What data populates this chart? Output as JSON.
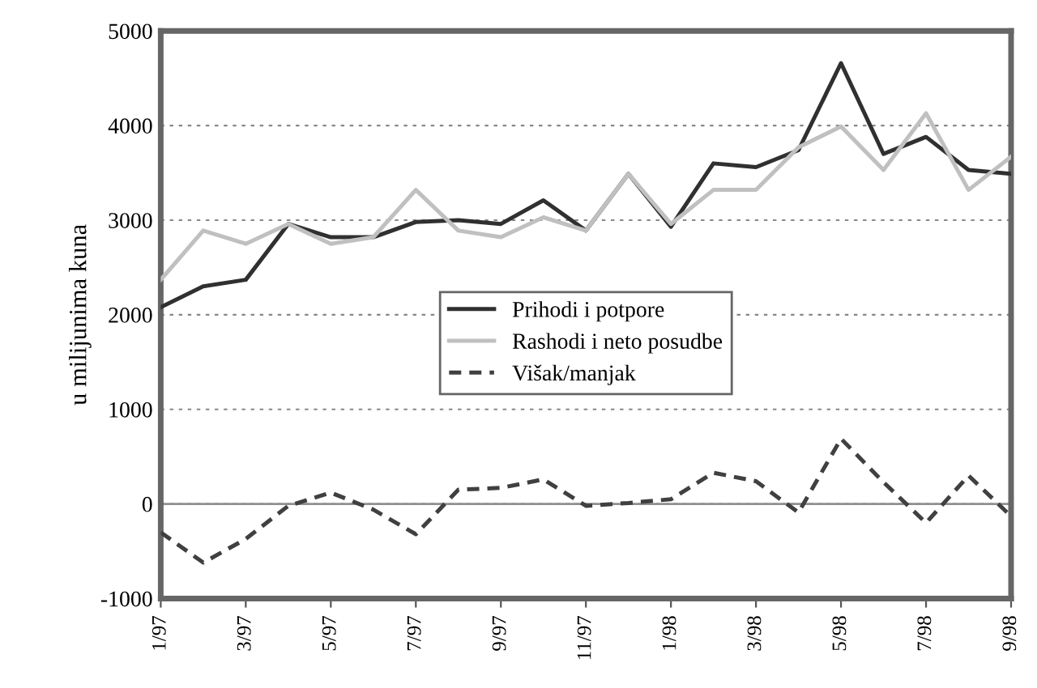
{
  "chart_data": {
    "type": "line",
    "ylabel": "u milijunima kuna",
    "categories": [
      "1/97",
      null,
      "3/97",
      null,
      "5/97",
      null,
      "7/97",
      null,
      "9/97",
      null,
      "11/97",
      null,
      "1/98",
      null,
      "3/98",
      null,
      "5/98",
      null,
      "7/98",
      null,
      "9/98"
    ],
    "series": [
      {
        "name": "Prihodi i potpore",
        "color": "#303030",
        "values": [
          2080,
          2300,
          2370,
          2960,
          2820,
          2820,
          2980,
          3000,
          2960,
          3210,
          2890,
          3490,
          2930,
          3600,
          3560,
          3740,
          4660,
          3700,
          3880,
          3530,
          3490
        ]
      },
      {
        "name": "Rashodi i neto posudbe",
        "color": "#c0c0c0",
        "values": [
          2370,
          2890,
          2750,
          2960,
          2750,
          2820,
          3320,
          2890,
          2820,
          3030,
          2890,
          3490,
          2960,
          3320,
          3320,
          3770,
          3990,
          3530,
          4130,
          3320,
          3670
        ]
      },
      {
        "name": "Višak/manjak",
        "color": "#404040",
        "line_style": "dashed",
        "values": [
          -300,
          -620,
          -370,
          -20,
          120,
          -60,
          -320,
          150,
          170,
          260,
          -20,
          10,
          50,
          330,
          240,
          -90,
          690,
          230,
          -200,
          300,
          -130
        ]
      }
    ],
    "ylim": [
      -1000,
      5000
    ],
    "yticks": [
      -1000,
      0,
      1000,
      2000,
      3000,
      4000,
      5000
    ],
    "grid": "y",
    "legend": "center",
    "line_style": "solid",
    "marker": "none",
    "ref_lines": [
      {
        "axis": "y",
        "value": 0,
        "color": "#909090"
      }
    ]
  }
}
